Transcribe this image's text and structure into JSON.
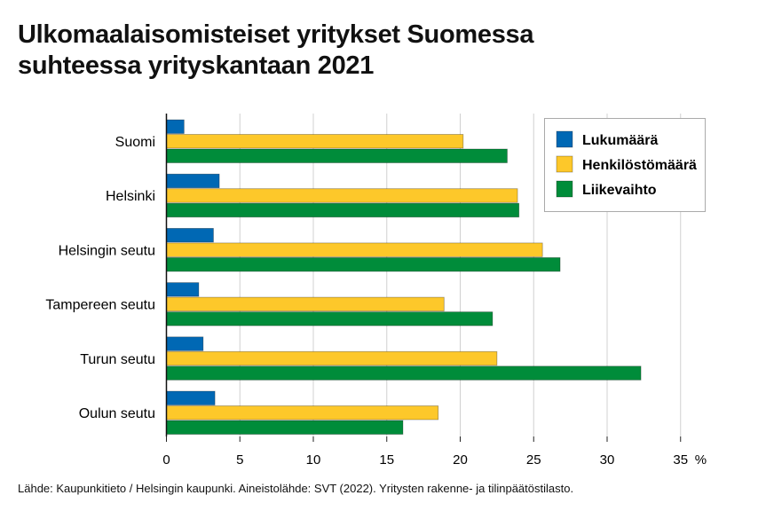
{
  "title_lines": [
    "Ulkomaalaisomisteiset yritykset Suomessa",
    "suhteessa yrityskantaan 2021"
  ],
  "source": "Lähde: Kaupunkitieto / Helsingin kaupunki. Aineistolähde: SVT (2022). Yritysten rakenne- ja tilinpäätöstilasto.",
  "chart_data": {
    "type": "bar",
    "orientation": "horizontal",
    "title": "Ulkomaalaisomisteiset yritykset Suomessa suhteessa yrityskantaan 2021",
    "categories": [
      "Suomi",
      "Helsinki",
      "Helsingin seutu",
      "Tampereen seutu",
      "Turun seutu",
      "Oulun seutu"
    ],
    "series": [
      {
        "name": "Lukumäärä",
        "color": "#0068b4",
        "values": [
          1.2,
          3.6,
          3.2,
          2.2,
          2.5,
          3.3
        ]
      },
      {
        "name": "Henkilöstömäärä",
        "color": "#fdc82a",
        "values": [
          20.2,
          23.9,
          25.6,
          18.9,
          22.5,
          18.5
        ]
      },
      {
        "name": "Liikevaihto",
        "color": "#008c3a",
        "values": [
          23.2,
          24.0,
          26.8,
          22.2,
          32.3,
          16.1
        ]
      }
    ],
    "xlim": [
      0,
      35
    ],
    "xticks": [
      "0",
      "5",
      "10",
      "15",
      "20",
      "25",
      "30",
      "35"
    ],
    "xunit": "%",
    "grid": true,
    "legend": "top-right"
  }
}
